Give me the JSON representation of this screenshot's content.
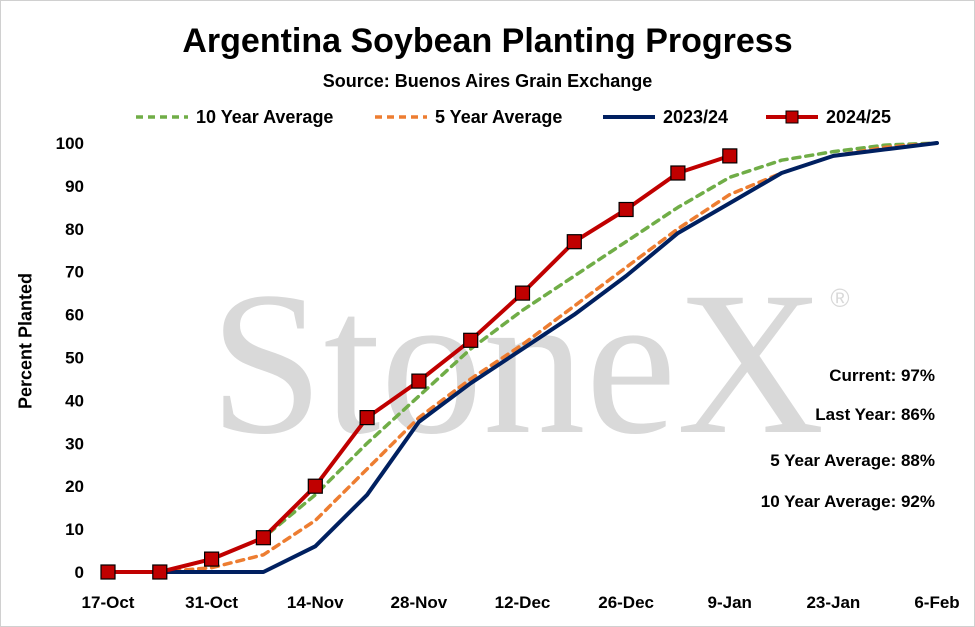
{
  "title": "Argentina Soybean Planting Progress",
  "subtitle": "Source: Buenos Aires Grain Exchange",
  "watermark": {
    "text": "StoneX",
    "mark": "®"
  },
  "stats": [
    {
      "label": "Current: 97%"
    },
    {
      "label": "Last Year: 86%"
    },
    {
      "label": "5 Year Average: 88%"
    },
    {
      "label": "10 Year Average: 92%"
    }
  ],
  "chart_data": {
    "type": "line",
    "title": "Argentina Soybean Planting Progress",
    "subtitle": "Source: Buenos Aires Grain Exchange",
    "xlabel": "",
    "ylabel": "Percent Planted",
    "ylim": [
      0,
      100
    ],
    "yticks": [
      0,
      10,
      20,
      30,
      40,
      50,
      60,
      70,
      80,
      90,
      100
    ],
    "xlim": [
      "2024-10-17",
      "2025-02-06"
    ],
    "xtick_labels": [
      "17-Oct",
      "31-Oct",
      "14-Nov",
      "28-Nov",
      "12-Dec",
      "26-Dec",
      "9-Jan",
      "23-Jan",
      "6-Feb"
    ],
    "xtick_dates": [
      "2024-10-17",
      "2024-10-31",
      "2024-11-14",
      "2024-11-28",
      "2024-12-12",
      "2024-12-26",
      "2025-01-09",
      "2025-01-23",
      "2025-02-06"
    ],
    "grid": false,
    "legend_position": "top",
    "series": [
      {
        "name": "10 Year Average",
        "color": "#70AD47",
        "style": "dashed",
        "marker": "none",
        "x": [
          "2024-10-24",
          "2024-10-31",
          "2024-11-07",
          "2024-11-14",
          "2024-11-21",
          "2024-11-28",
          "2024-12-05",
          "2024-12-12",
          "2024-12-19",
          "2024-12-26",
          "2025-01-02",
          "2025-01-09",
          "2025-01-16",
          "2025-01-23",
          "2025-01-30",
          "2025-02-06"
        ],
        "y": [
          0,
          3,
          8,
          18,
          30,
          41,
          52,
          61,
          69,
          77,
          85,
          92,
          96,
          98,
          99.5,
          100
        ]
      },
      {
        "name": "5 Year Average",
        "color": "#ED7D31",
        "style": "dashed",
        "marker": "none",
        "x": [
          "2024-10-24",
          "2024-10-31",
          "2024-11-07",
          "2024-11-14",
          "2024-11-21",
          "2024-11-28",
          "2024-12-05",
          "2024-12-12",
          "2024-12-19",
          "2024-12-26",
          "2025-01-02",
          "2025-01-09",
          "2025-01-16",
          "2025-01-23",
          "2025-01-30",
          "2025-02-06"
        ],
        "y": [
          0,
          1,
          4,
          12,
          24,
          36,
          45,
          53,
          62,
          71,
          80,
          88,
          93,
          97,
          99,
          100
        ]
      },
      {
        "name": "2023/24",
        "color": "#002060",
        "style": "solid",
        "marker": "none",
        "x": [
          "2024-10-24",
          "2024-10-31",
          "2024-11-07",
          "2024-11-14",
          "2024-11-21",
          "2024-11-28",
          "2024-12-05",
          "2024-12-12",
          "2024-12-19",
          "2024-12-26",
          "2025-01-02",
          "2025-01-09",
          "2025-01-16",
          "2025-01-23",
          "2025-01-30",
          "2025-02-06"
        ],
        "y": [
          0,
          0,
          0,
          6,
          18,
          35,
          44,
          52,
          60,
          69,
          79,
          86,
          93,
          97,
          98.5,
          100
        ]
      },
      {
        "name": "2024/25",
        "color": "#C00000",
        "style": "solid",
        "marker": "square",
        "x": [
          "2024-10-17",
          "2024-10-24",
          "2024-10-31",
          "2024-11-07",
          "2024-11-14",
          "2024-11-21",
          "2024-11-28",
          "2024-12-05",
          "2024-12-12",
          "2024-12-19",
          "2024-12-26",
          "2025-01-02",
          "2025-01-09"
        ],
        "y": [
          0,
          0,
          3,
          8,
          20,
          36,
          44.5,
          54,
          65,
          77,
          84.5,
          93,
          97
        ]
      }
    ]
  }
}
